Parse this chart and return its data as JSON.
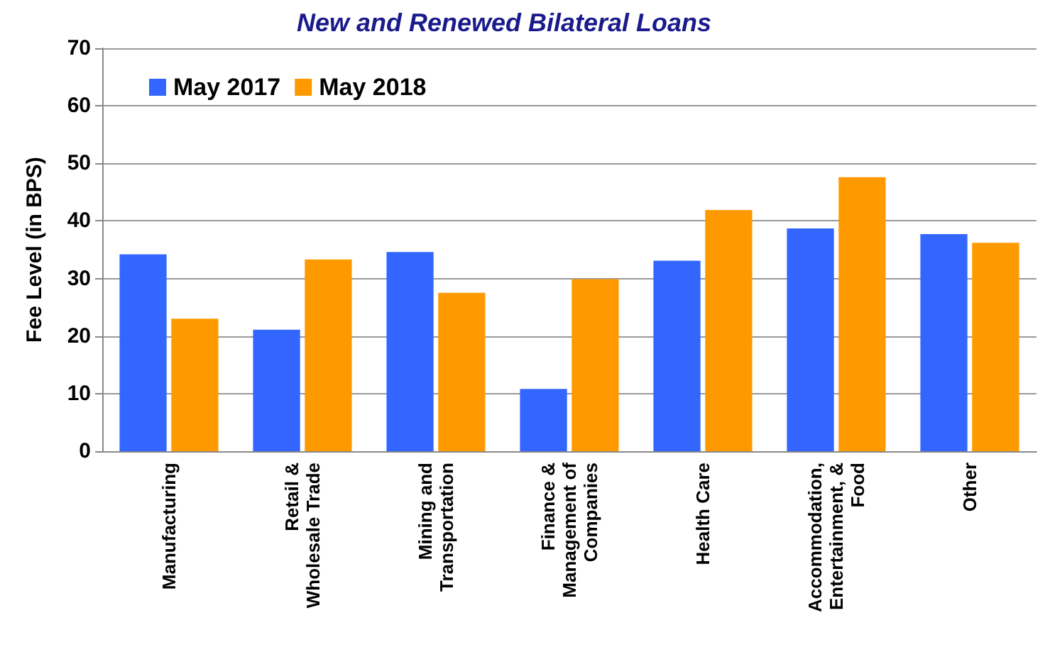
{
  "chart_data": {
    "type": "bar",
    "title": "New and Renewed Bilateral Loans",
    "ylabel": "Fee Level (in BPS)",
    "categories": [
      "Manufacturing",
      "Retail &\nWholesale Trade",
      "Mining and\nTransportation",
      "Finance &\nManagement of\nCompanies",
      "Health Care",
      "Accommodation,\nEntertainment, &\nFood",
      "Other"
    ],
    "series": [
      {
        "name": "May 2017",
        "color": "#3366ff",
        "values": [
          34.2,
          21.1,
          34.6,
          10.8,
          33.1,
          38.7,
          37.7
        ]
      },
      {
        "name": "May 2018",
        "color": "#ff9900",
        "values": [
          23.0,
          33.3,
          27.5,
          29.9,
          41.9,
          47.6,
          36.2
        ]
      }
    ],
    "ylim": [
      0,
      70
    ],
    "yticks": [
      0,
      10,
      20,
      30,
      40,
      50,
      60,
      70
    ],
    "grid": "y",
    "legend": "top left"
  }
}
